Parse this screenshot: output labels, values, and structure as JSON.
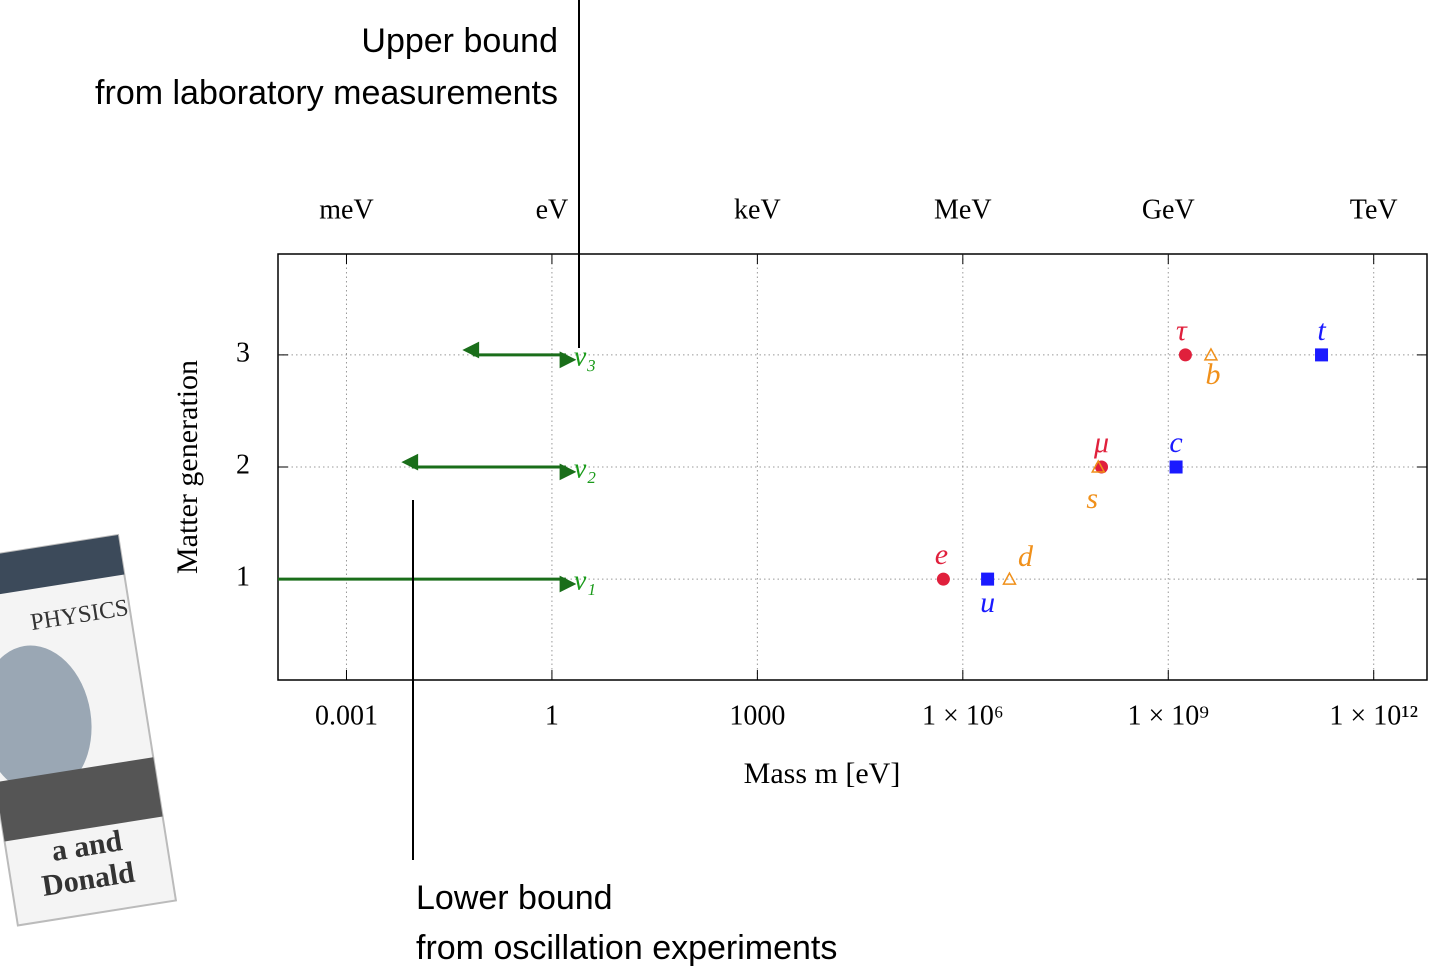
{
  "chart_data": {
    "type": "scatter",
    "xlabel": "Mass m [eV]",
    "ylabel": "Matter generation",
    "log_x": true,
    "grid": true,
    "xlim": [
      0.0001,
      6000000000000
    ],
    "ylim": [
      0.1,
      3.9
    ],
    "xticks": [
      {
        "value": 0.001,
        "label": "0.001"
      },
      {
        "value": 1,
        "label": "1"
      },
      {
        "value": 1000,
        "label": "1000"
      },
      {
        "value": 1000000,
        "label": "1 × 10⁶"
      },
      {
        "value": 1000000000,
        "label": "1 × 10⁹"
      },
      {
        "value": 1000000000000,
        "label": "1 × 10¹²"
      }
    ],
    "x2ticks": [
      {
        "value": 0.001,
        "label": "meV"
      },
      {
        "value": 1,
        "label": "eV"
      },
      {
        "value": 1000,
        "label": "keV"
      },
      {
        "value": 1000000,
        "label": "MeV"
      },
      {
        "value": 1000000000,
        "label": "GeV"
      },
      {
        "value": 1000000000000,
        "label": "TeV"
      }
    ],
    "yticks": [
      1,
      2,
      3
    ],
    "series": [
      {
        "color": "#e0203c",
        "marker": "circle",
        "labels": [
          "e",
          "μ",
          "τ"
        ],
        "x": [
          520000,
          106000000,
          1780000000
        ],
        "y": [
          1,
          2,
          3
        ]
      },
      {
        "color": "#1a1aff",
        "marker": "square",
        "labels": [
          "u",
          "c",
          "t"
        ],
        "x": [
          2300000,
          1300000000,
          173000000000
        ],
        "y": [
          1,
          2,
          3
        ]
      },
      {
        "color": "#f0901a",
        "marker": "triangle",
        "labels": [
          "d",
          "s",
          "b"
        ],
        "x": [
          4800000,
          95000000,
          4200000000
        ],
        "y": [
          1,
          2,
          3
        ]
      }
    ],
    "neutrinos": {
      "color": "#1a6e1a",
      "label_color": "#1a9a1a",
      "labels": [
        "ν₁",
        "ν₂",
        "ν₃"
      ],
      "lower": [
        null,
        0.009,
        0.07
      ],
      "upper": [
        1.6,
        1.6,
        1.6
      ],
      "y": [
        1,
        2,
        3
      ]
    },
    "annotations": [
      {
        "lines": [
          "Upper bound",
          "from laboratory measurements"
        ]
      },
      {
        "lines": [
          "Lower bound",
          "from oscillation experiments"
        ]
      }
    ]
  },
  "book": {
    "lines": [
      "PHYSICS",
      "a and",
      "Donald"
    ]
  }
}
